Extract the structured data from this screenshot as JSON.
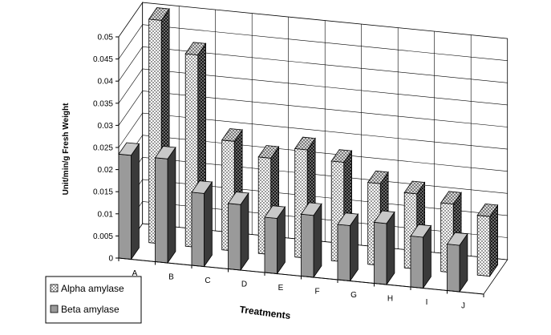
{
  "chart_data": {
    "type": "bar",
    "projection": "3d",
    "ylabel": "Unit/min/g Fresh Weight",
    "xlabel": "Treatments",
    "categories": [
      "A",
      "B",
      "C",
      "D",
      "E",
      "F",
      "G",
      "H",
      "I",
      "J"
    ],
    "ylim": [
      0,
      0.05
    ],
    "yticks": [
      "0",
      "0.005",
      "0.01",
      "0.015",
      "0.02",
      "0.025",
      "0.03",
      "0.035",
      "0.04",
      "0.045",
      "0.05"
    ],
    "grid": true,
    "legend_position": "bottom-left",
    "series": [
      {
        "name": "Alpha amylase",
        "values": [
          0.0505,
          0.0435,
          0.0248,
          0.0218,
          0.0245,
          0.0225,
          0.0185,
          0.017,
          0.0155,
          0.0135
        ],
        "pattern": "checkered",
        "color": "#dddddd"
      },
      {
        "name": "Beta amylase",
        "values": [
          0.0235,
          0.0235,
          0.0165,
          0.0148,
          0.0125,
          0.014,
          0.0125,
          0.0138,
          0.0115,
          0.0105
        ],
        "color": "#999999"
      }
    ]
  }
}
